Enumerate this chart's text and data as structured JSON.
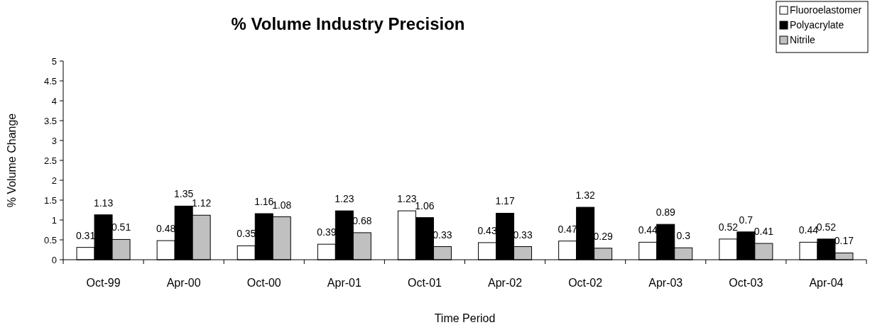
{
  "chart_data": {
    "type": "bar",
    "title": "% Volume Industry Precision",
    "xlabel": "Time Period",
    "ylabel": "% Volume Change",
    "categories": [
      "Oct-99",
      "Apr-00",
      "Oct-00",
      "Apr-01",
      "Oct-01",
      "Apr-02",
      "Oct-02",
      "Apr-03",
      "Oct-03",
      "Apr-04"
    ],
    "series": [
      {
        "name": "Fluoroelastomer",
        "color": "#ffffff",
        "values": [
          0.31,
          0.48,
          0.35,
          0.39,
          1.23,
          0.43,
          0.47,
          0.44,
          0.52,
          0.44
        ]
      },
      {
        "name": "Polyacrylate",
        "color": "#000000",
        "values": [
          1.13,
          1.35,
          1.16,
          1.23,
          1.06,
          1.17,
          1.32,
          0.89,
          0.7,
          0.52
        ]
      },
      {
        "name": "Nitrile",
        "color": "#c0c0c0",
        "values": [
          0.51,
          1.12,
          1.08,
          0.68,
          0.33,
          0.33,
          0.29,
          0.3,
          0.41,
          0.17
        ]
      }
    ],
    "ylim": [
      0,
      5
    ],
    "yticks": [
      0,
      0.5,
      1,
      1.5,
      2,
      2.5,
      3,
      3.5,
      4,
      4.5,
      5
    ],
    "data_labels": true,
    "legend": "top right",
    "grid": false
  }
}
